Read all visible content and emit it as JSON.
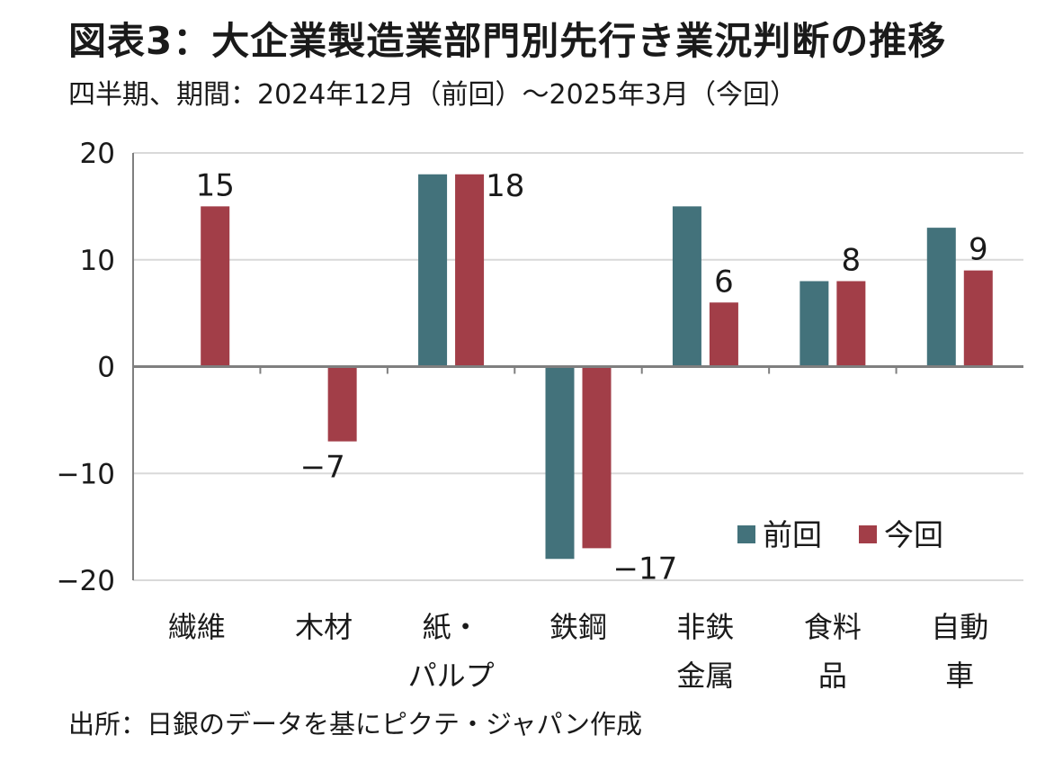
{
  "title": "図表3：大企業製造業部門別先行き業況判断の推移",
  "subtitle": "四半期、期間：2024年12月（前回）～2025年3月（今回）",
  "source": "出所：日銀のデータを基にピクテ・ジャパン作成",
  "colors": {
    "previous": "#43727b",
    "current": "#a23e48",
    "grid": "#d9d9d9",
    "axis": "#7f7f7f"
  },
  "chart_data": {
    "type": "bar",
    "categories": [
      [
        "繊維"
      ],
      [
        "木材"
      ],
      [
        "紙・",
        "パルプ"
      ],
      [
        "鉄鋼"
      ],
      [
        "非鉄",
        "金属"
      ],
      [
        "食料",
        "品"
      ],
      [
        "自動",
        "車"
      ]
    ],
    "series": [
      {
        "name": "前回",
        "values": [
          0,
          0,
          18,
          -18,
          15,
          8,
          13
        ]
      },
      {
        "name": "今回",
        "values": [
          15,
          -7,
          18,
          -17,
          6,
          8,
          9
        ]
      }
    ],
    "data_labels": [
      "15",
      "-7",
      "18",
      "-17",
      "6",
      "8",
      "9"
    ],
    "yticks": [
      "20",
      "10",
      "0",
      "-10",
      "-20"
    ],
    "ylim": [
      -20,
      20
    ],
    "grid": true,
    "legend": "bottom-right"
  }
}
